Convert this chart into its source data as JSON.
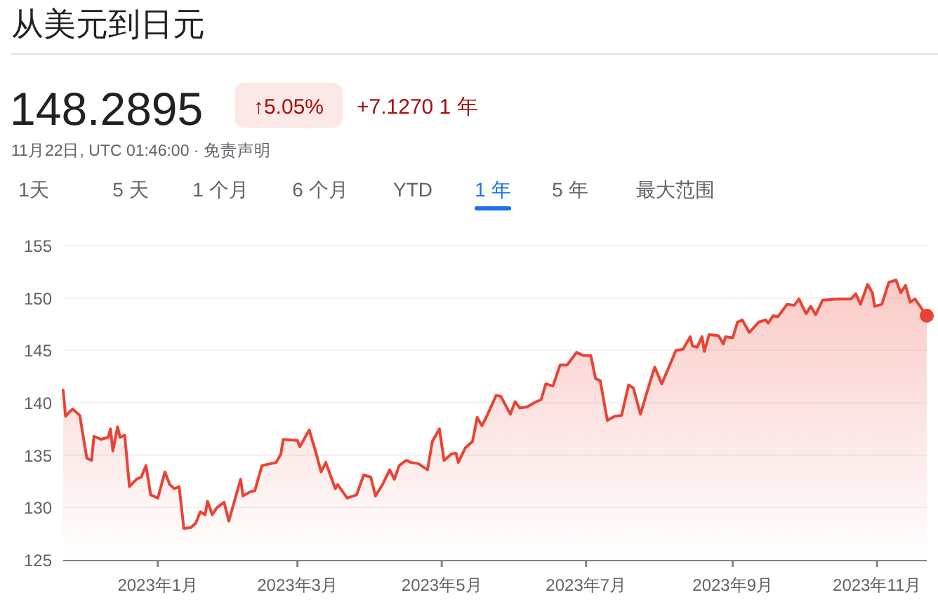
{
  "chart_data": {
    "type": "area",
    "title": "从美元到日元",
    "annotations": [
      "148.2895",
      "↑5.05%",
      "+7.1270 1 年",
      "11月22日, UTC 01:46:00 · 免责声明",
      "1天",
      "5 天",
      "1 个月",
      "6 个月",
      "YTD",
      "1 年",
      "5 年",
      "最大范围"
    ],
    "xlim": [
      "2022-11-22",
      "2023-11-22"
    ],
    "xticks": [
      {
        "value": "2023-01-01",
        "label": "2023年1月"
      },
      {
        "value": "2023-03-01",
        "label": "2023年3月"
      },
      {
        "value": "2023-05-01",
        "label": "2023年5月"
      },
      {
        "value": "2023-07-01",
        "label": "2023年7月"
      },
      {
        "value": "2023-09-01",
        "label": "2023年9月"
      },
      {
        "value": "2023-11-01",
        "label": "2023年11月"
      }
    ],
    "ylim": [
      125,
      155
    ],
    "yticks": [
      125,
      130,
      135,
      140,
      145,
      150,
      155
    ],
    "grid": "y",
    "line_style": "solid",
    "series": [
      {
        "color": "#ea4335",
        "x": [
          "2022-11-22",
          "2022-11-23",
          "2022-11-25",
          "2022-11-26",
          "2022-11-29",
          "2022-12-02",
          "2022-12-04",
          "2022-12-05",
          "2022-12-08",
          "2022-12-11",
          "2022-12-12",
          "2022-12-13",
          "2022-12-15",
          "2022-12-16",
          "2022-12-18",
          "2022-12-20",
          "2022-12-23",
          "2022-12-25",
          "2022-12-27",
          "2022-12-29",
          "2023-01-01",
          "2023-01-04",
          "2023-01-06",
          "2023-01-08",
          "2023-01-10",
          "2023-01-12",
          "2023-01-15",
          "2023-01-17",
          "2023-01-19",
          "2023-01-21",
          "2023-01-22",
          "2023-01-24",
          "2023-01-26",
          "2023-01-29",
          "2023-01-31",
          "2023-02-03",
          "2023-02-05",
          "2023-02-06",
          "2023-02-09",
          "2023-02-11",
          "2023-02-14",
          "2023-02-20",
          "2023-02-22",
          "2023-02-23",
          "2023-03-01",
          "2023-03-02",
          "2023-03-06",
          "2023-03-09",
          "2023-03-11",
          "2023-03-13",
          "2023-03-17",
          "2023-03-18",
          "2023-03-22",
          "2023-03-26",
          "2023-03-29",
          "2023-04-01",
          "2023-04-03",
          "2023-04-06",
          "2023-04-09",
          "2023-04-11",
          "2023-04-13",
          "2023-04-16",
          "2023-04-18",
          "2023-04-21",
          "2023-04-25",
          "2023-04-27",
          "2023-04-30",
          "2023-05-02",
          "2023-05-05",
          "2023-05-07",
          "2023-05-08",
          "2023-05-11",
          "2023-05-14",
          "2023-05-16",
          "2023-05-18",
          "2023-05-20",
          "2023-05-24",
          "2023-05-26",
          "2023-05-30",
          "2023-06-01",
          "2023-06-03",
          "2023-06-06",
          "2023-06-10",
          "2023-06-12",
          "2023-06-14",
          "2023-06-17",
          "2023-06-20",
          "2023-06-23",
          "2023-06-27",
          "2023-06-30",
          "2023-07-03",
          "2023-07-05",
          "2023-07-07",
          "2023-07-10",
          "2023-07-13",
          "2023-07-16",
          "2023-07-19",
          "2023-07-21",
          "2023-07-24",
          "2023-07-27",
          "2023-07-30",
          "2023-08-02",
          "2023-08-05",
          "2023-08-08",
          "2023-08-11",
          "2023-08-14",
          "2023-08-15",
          "2023-08-17",
          "2023-08-19",
          "2023-08-20",
          "2023-08-22",
          "2023-08-26",
          "2023-08-28",
          "2023-08-29",
          "2023-09-01",
          "2023-09-03",
          "2023-09-05",
          "2023-09-08",
          "2023-09-12",
          "2023-09-15",
          "2023-09-16",
          "2023-09-18",
          "2023-09-20",
          "2023-09-24",
          "2023-09-27",
          "2023-09-29",
          "2023-10-02",
          "2023-10-04",
          "2023-10-06",
          "2023-10-09",
          "2023-10-15",
          "2023-10-21",
          "2023-10-23",
          "2023-10-25",
          "2023-10-28",
          "2023-10-30",
          "2023-10-31",
          "2023-11-03",
          "2023-11-06",
          "2023-11-09",
          "2023-11-11",
          "2023-11-13",
          "2023-11-15",
          "2023-11-17",
          "2023-11-22"
        ],
        "values": [
          141.2,
          138.7,
          139.2,
          139.4,
          138.8,
          134.7,
          134.5,
          136.8,
          136.5,
          136.7,
          137.5,
          135.4,
          137.7,
          136.7,
          136.9,
          132.0,
          132.7,
          132.9,
          134.0,
          131.2,
          130.9,
          133.4,
          132.2,
          131.8,
          132.0,
          128.0,
          128.1,
          128.5,
          129.6,
          129.3,
          130.6,
          129.3,
          130.0,
          130.5,
          128.7,
          131.1,
          132.7,
          131.1,
          131.5,
          131.6,
          134.0,
          134.3,
          135.1,
          136.5,
          136.4,
          135.8,
          137.4,
          135.1,
          133.4,
          134.3,
          131.8,
          132.2,
          130.9,
          131.2,
          133.1,
          132.9,
          131.1,
          132.2,
          133.6,
          132.7,
          134.0,
          134.5,
          134.3,
          134.2,
          133.6,
          136.3,
          137.5,
          134.5,
          135.1,
          135.2,
          134.3,
          135.7,
          136.3,
          138.6,
          137.8,
          138.7,
          140.7,
          140.6,
          138.9,
          140.1,
          139.5,
          139.6,
          140.1,
          140.3,
          141.8,
          141.6,
          143.6,
          143.6,
          144.8,
          144.5,
          144.5,
          142.3,
          142.1,
          138.3,
          138.7,
          138.8,
          141.7,
          141.4,
          138.9,
          141.2,
          143.4,
          141.8,
          143.4,
          145.0,
          145.1,
          146.3,
          145.4,
          145.3,
          146.3,
          144.9,
          146.5,
          146.4,
          145.6,
          146.3,
          146.2,
          147.7,
          147.9,
          146.7,
          147.7,
          147.9,
          147.6,
          148.3,
          148.2,
          149.4,
          149.3,
          149.9,
          148.5,
          149.2,
          148.4,
          149.8,
          149.9,
          149.9,
          150.4,
          149.4,
          151.3,
          150.5,
          149.2,
          149.4,
          151.5,
          151.7,
          150.5,
          151.2,
          149.6,
          149.9,
          148.3
        ]
      },
      {
        "type": "scatter",
        "marker": "circle",
        "color": "#ea4335",
        "x": [
          "2023-11-22"
        ],
        "values": [
          148.3
        ]
      }
    ]
  }
}
